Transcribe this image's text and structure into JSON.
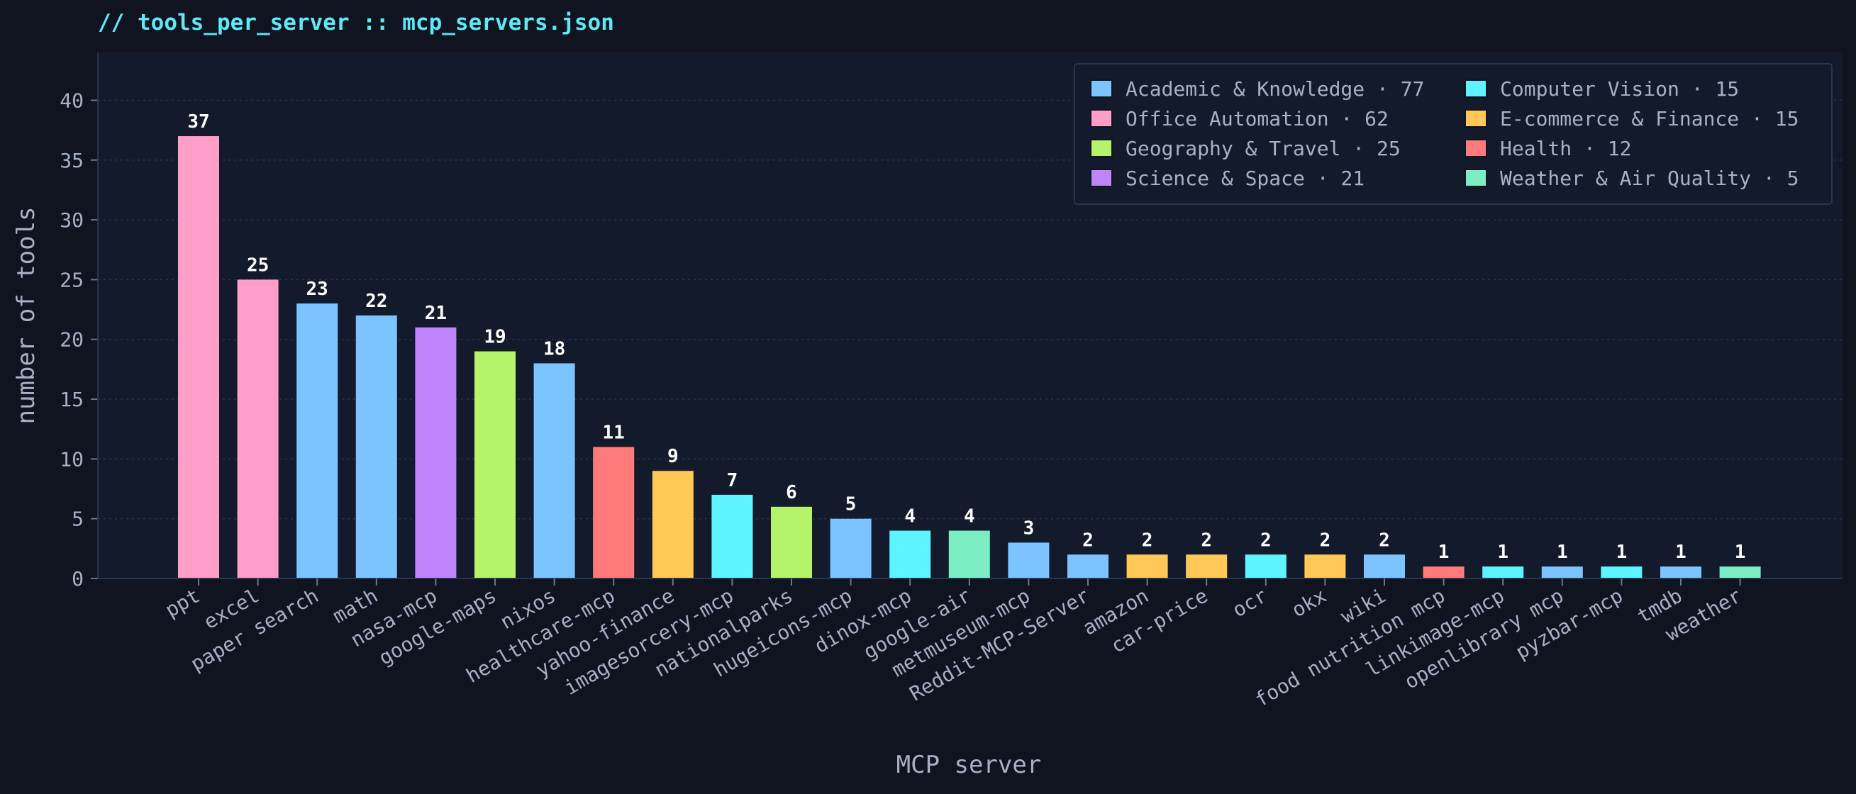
{
  "header": {
    "title": "// tools_per_server :: mcp_servers.json"
  },
  "chart_data": {
    "type": "bar",
    "title": "",
    "xlabel": "MCP server",
    "ylabel": "number of tools",
    "ylim": [
      0,
      44
    ],
    "yticks": [
      0,
      5,
      10,
      15,
      20,
      25,
      30,
      35,
      40
    ],
    "grid": "horizontal dotted",
    "legend_position": "top-right",
    "categories": [
      "ppt",
      "excel",
      "paper search",
      "math",
      "nasa-mcp",
      "google-maps",
      "nixos",
      "healthcare-mcp",
      "yahoo-finance",
      "imagesorcery-mcp",
      "nationalparks",
      "hugeicons-mcp",
      "dinox-mcp",
      "google-air",
      "metmuseum-mcp",
      "Reddit-MCP-Server",
      "amazon",
      "car-price",
      "ocr",
      "okx",
      "wiki",
      "food nutrition mcp",
      "linkimage-mcp",
      "openlibrary mcp",
      "pyzbar-mcp",
      "tmdb",
      "weather"
    ],
    "values": [
      37,
      25,
      23,
      22,
      21,
      19,
      18,
      11,
      9,
      7,
      6,
      5,
      4,
      4,
      3,
      2,
      2,
      2,
      2,
      2,
      2,
      1,
      1,
      1,
      1,
      1,
      1
    ],
    "bar_groups": [
      "Office Automation",
      "Office Automation",
      "Academic & Knowledge",
      "Academic & Knowledge",
      "Science & Space",
      "Geography & Travel",
      "Academic & Knowledge",
      "Health",
      "E-commerce & Finance",
      "Computer Vision",
      "Geography & Travel",
      "Academic & Knowledge",
      "Computer Vision",
      "Weather & Air Quality",
      "Academic & Knowledge",
      "Academic & Knowledge",
      "E-commerce & Finance",
      "E-commerce & Finance",
      "Computer Vision",
      "E-commerce & Finance",
      "Academic & Knowledge",
      "Health",
      "Computer Vision",
      "Academic & Knowledge",
      "Computer Vision",
      "Academic & Knowledge",
      "Weather & Air Quality"
    ],
    "legend": [
      {
        "name": "Academic & Knowledge",
        "total": "77",
        "color": "#7cc4ff"
      },
      {
        "name": "Office Automation",
        "total": "62",
        "color": "#ff9ec9"
      },
      {
        "name": "Geography & Travel",
        "total": "25",
        "color": "#b5f36b"
      },
      {
        "name": "Science & Space",
        "total": "21",
        "color": "#c084fc"
      },
      {
        "name": "Computer Vision",
        "total": "15",
        "color": "#5ef4ff"
      },
      {
        "name": "E-commerce & Finance",
        "total": "15",
        "color": "#ffc857"
      },
      {
        "name": "Health",
        "total": "12",
        "color": "#ff7b7b"
      },
      {
        "name": "Weather & Air Quality",
        "total": "5",
        "color": "#7deec4"
      }
    ]
  },
  "colors": {
    "background": "#0f1420",
    "plot_background": "#131a2b",
    "title": "#5ee9f5",
    "text": "#a7b0c6"
  }
}
